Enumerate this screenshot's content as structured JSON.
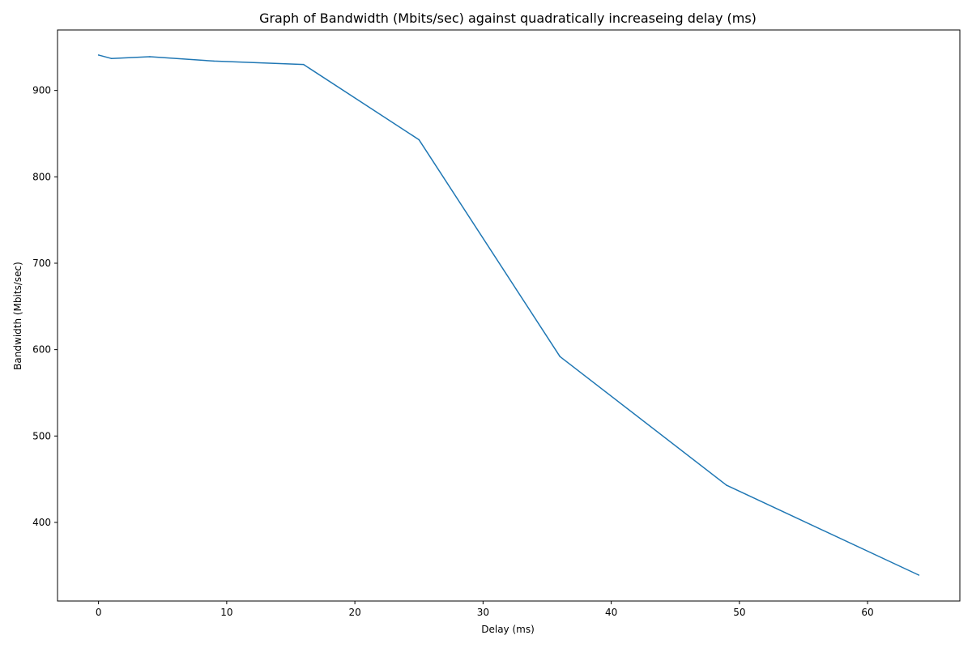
{
  "chart_data": {
    "type": "line",
    "title": "Graph of Bandwidth (Mbits/sec) against quadratically increaseing delay (ms)",
    "xlabel": "Delay (ms)",
    "ylabel": "Bandwidth (Mbits/sec)",
    "xlim": [
      -3.2,
      67.2
    ],
    "ylim": [
      309,
      970
    ],
    "xticks": [
      0,
      10,
      20,
      30,
      40,
      50,
      60
    ],
    "yticks": [
      400,
      500,
      600,
      700,
      800,
      900
    ],
    "grid": false,
    "series": [
      {
        "color": "#1f77b4",
        "x": [
          0,
          1,
          4,
          9,
          16,
          25,
          36,
          49,
          64
        ],
        "y": [
          941,
          937,
          939,
          934,
          930,
          843,
          592,
          443,
          339
        ]
      }
    ]
  }
}
